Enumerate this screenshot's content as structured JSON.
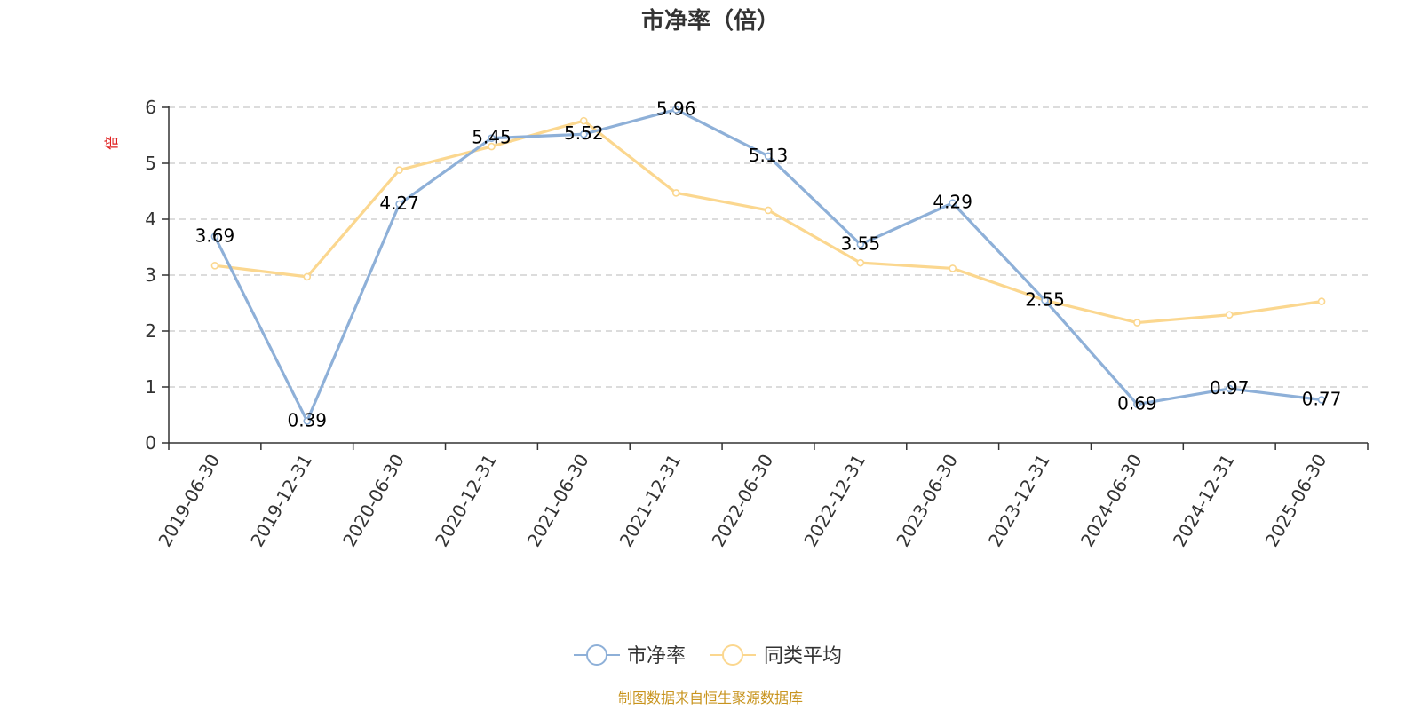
{
  "colors": {
    "series_pb": "#8eb0d8",
    "series_avg": "#fbd78f",
    "unit": "#e02020",
    "source": "#c8941e",
    "grid": "#c8c8c8",
    "axis": "#333333"
  },
  "chart_data": {
    "type": "line",
    "title": "市净率（倍）",
    "ylabel": "倍",
    "ylim": [
      0,
      6
    ],
    "yticks": [
      "0",
      "1",
      "2",
      "3",
      "4",
      "5",
      "6"
    ],
    "grid": true,
    "legend_position": "bottom-center",
    "x": [
      "2019-06-30",
      "2019-12-31",
      "2020-06-30",
      "2020-12-31",
      "2021-06-30",
      "2021-12-31",
      "2022-06-30",
      "2022-12-31",
      "2023-06-30",
      "2023-12-31",
      "2024-06-30",
      "2024-12-31",
      "2025-06-30"
    ],
    "series": [
      {
        "name": "市净率",
        "values": [
          3.69,
          0.39,
          4.27,
          5.45,
          5.52,
          5.96,
          5.13,
          3.55,
          4.29,
          2.55,
          0.69,
          0.97,
          0.77
        ],
        "labels": [
          "3.69",
          "0.39",
          "4.27",
          "5.45",
          "5.52",
          "5.96",
          "5.13",
          "3.55",
          "4.29",
          "2.55",
          "0.69",
          "0.97",
          "0.77"
        ]
      },
      {
        "name": "同类平均",
        "values": [
          3.17,
          2.97,
          4.88,
          5.3,
          5.76,
          4.47,
          4.16,
          3.22,
          3.12,
          2.55,
          2.15,
          2.29,
          2.53
        ]
      }
    ]
  },
  "source_text": "制图数据来自恒生聚源数据库"
}
